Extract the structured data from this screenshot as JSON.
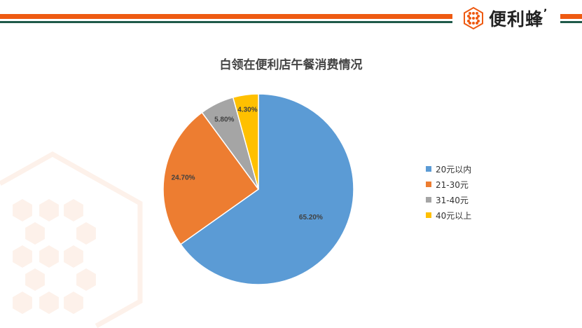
{
  "brand": {
    "name": "便利蜂",
    "accent": "#ee5a12",
    "secondary": "#1f5a4a"
  },
  "chart_data": {
    "type": "pie",
    "title": "白领在便利店午餐消费情况",
    "categories": [
      "20元以内",
      "21-30元",
      "31-40元",
      "40元以上"
    ],
    "values": [
      65.2,
      24.7,
      5.8,
      4.3
    ],
    "labels": [
      "65.20%",
      "24.70%",
      "5.80%",
      "4.30%"
    ],
    "colors": [
      "#5b9bd5",
      "#ed7d31",
      "#a5a5a5",
      "#ffc000"
    ],
    "start_angle": "top",
    "direction": "clockwise",
    "legend_position": "right"
  }
}
